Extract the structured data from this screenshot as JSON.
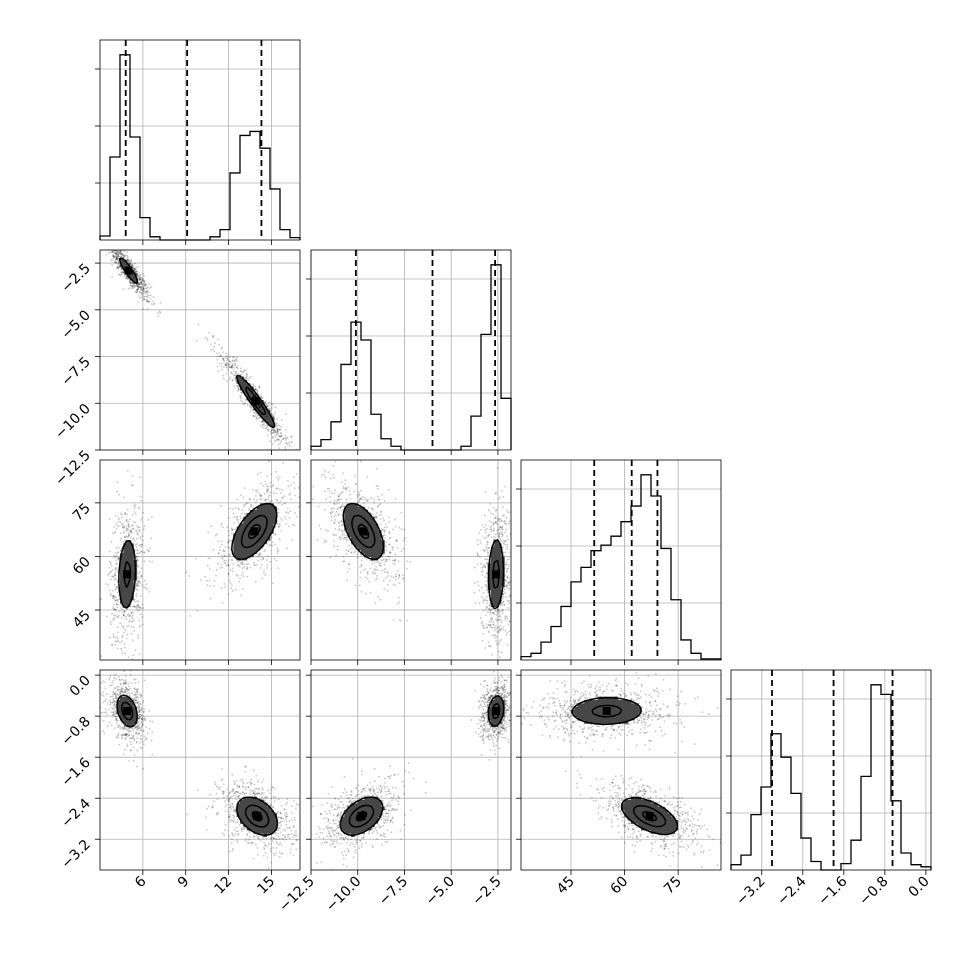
{
  "chart_data": {
    "type": "corner",
    "parameters": [
      {
        "range": [
          3,
          17
        ],
        "ticks": [
          6,
          9,
          12,
          15
        ],
        "tick_labels": [
          "6",
          "9",
          "12",
          "15"
        ],
        "quantiles": [
          4.8,
          9.1,
          14.3
        ],
        "histogram": {
          "bin_edges": [
            3,
            3.7,
            4.4,
            5.1,
            5.8,
            6.5,
            7.2,
            7.9,
            8.6,
            9.3,
            10.0,
            10.7,
            11.4,
            12.1,
            12.8,
            13.5,
            14.2,
            14.9,
            15.6,
            16.3,
            17
          ],
          "counts": [
            5,
            104,
            232,
            129,
            28,
            4,
            0,
            0,
            0,
            0,
            0,
            4,
            13,
            84,
            131,
            136,
            115,
            64,
            13,
            3
          ]
        }
      },
      {
        "range": [
          -12.5,
          -1.8
        ],
        "ticks": [
          -12.5,
          -10.0,
          -7.5,
          -5.0,
          -2.5
        ],
        "tick_labels": [
          "−12.5",
          "−10.0",
          "−7.5",
          "−5.0",
          "−2.5"
        ],
        "quantiles": [
          -10.1,
          -6.0,
          -2.65
        ],
        "histogram": {
          "bin_edges": [
            -12.5,
            -11.965,
            -11.43,
            -10.895,
            -10.36,
            -9.825,
            -9.29,
            -8.755,
            -8.22,
            -7.685,
            -7.15,
            -6.615,
            -6.08,
            -5.545,
            -5.01,
            -4.475,
            -3.94,
            -3.405,
            -2.87,
            -2.335,
            -1.8
          ],
          "counts": [
            4,
            11,
            30,
            91,
            136,
            117,
            38,
            12,
            4,
            0,
            0,
            0,
            0,
            0,
            0,
            4,
            36,
            123,
            197,
            55
          ]
        }
      },
      {
        "range": [
          31,
          87
        ],
        "ticks": [
          45,
          60,
          75
        ],
        "tick_labels": [
          "45",
          "60",
          "75"
        ],
        "quantiles": [
          51.5,
          62,
          69.2
        ],
        "histogram": {
          "bin_edges": [
            31,
            33.8,
            36.6,
            39.4,
            42.2,
            45,
            47.8,
            50.6,
            53.4,
            56.2,
            59,
            61.8,
            64.6,
            67.4,
            70.2,
            73,
            75.8,
            78.6,
            81.4,
            84.2,
            87
          ],
          "counts": [
            3,
            6,
            16,
            30,
            48,
            70,
            83,
            98,
            103,
            111,
            124,
            138,
            166,
            147,
            100,
            54,
            18,
            6,
            1,
            1
          ]
        }
      },
      {
        "range": [
          -3.8,
          0.1
        ],
        "ticks": [
          -3.2,
          -2.4,
          -1.6,
          -0.8,
          0.0
        ],
        "tick_labels": [
          "−3.2",
          "−2.4",
          "−1.6",
          "−0.8",
          "0.0"
        ],
        "quantiles": [
          -3.0,
          -1.8,
          -0.65
        ],
        "histogram": {
          "bin_edges": [
            -3.8,
            -3.605,
            -3.41,
            -3.215,
            -3.02,
            -2.825,
            -2.63,
            -2.435,
            -2.24,
            -2.045,
            -1.85,
            -1.655,
            -1.46,
            -1.265,
            -1.07,
            -0.875,
            -0.68,
            -0.485,
            -0.29,
            -0.095,
            0.1
          ],
          "counts": [
            5,
            14,
            52,
            78,
            128,
            106,
            72,
            30,
            8,
            0,
            0,
            6,
            28,
            88,
            174,
            165,
            65,
            16,
            5,
            3
          ]
        }
      }
    ],
    "pairs": [
      {
        "x": 0,
        "y": 1,
        "clusters": [
          {
            "mean": [
              5.0,
              -2.9
            ],
            "sd": [
              0.55,
              0.6
            ],
            "rho": -0.9,
            "weight": 0.5
          },
          {
            "mean": [
              13.9,
              -9.9
            ],
            "sd": [
              0.95,
              1.0
            ],
            "rho": -0.95,
            "weight": 0.5
          }
        ]
      },
      {
        "x": 0,
        "y": 2,
        "clusters": [
          {
            "mean": [
              4.9,
              55
            ],
            "sd": [
              0.45,
              7.5
            ],
            "rho": 0.15,
            "weight": 0.5
          },
          {
            "mean": [
              13.8,
              67
            ],
            "sd": [
              1.1,
              5.5
            ],
            "rho": 0.6,
            "weight": 0.5
          }
        ]
      },
      {
        "x": 0,
        "y": 3,
        "clusters": [
          {
            "mean": [
              4.9,
              -0.7
            ],
            "sd": [
              0.5,
              0.22
            ],
            "rho": -0.35,
            "weight": 0.5
          },
          {
            "mean": [
              14.0,
              -2.75
            ],
            "sd": [
              1.0,
              0.26
            ],
            "rho": -0.4,
            "weight": 0.5
          }
        ]
      },
      {
        "x": 1,
        "y": 2,
        "clusters": [
          {
            "mean": [
              -9.7,
              67
            ],
            "sd": [
              0.75,
              5.5
            ],
            "rho": -0.55,
            "weight": 0.5
          },
          {
            "mean": [
              -2.6,
              55
            ],
            "sd": [
              0.3,
              7.5
            ],
            "rho": 0.1,
            "weight": 0.5
          }
        ]
      },
      {
        "x": 1,
        "y": 3,
        "clusters": [
          {
            "mean": [
              -9.8,
              -2.75
            ],
            "sd": [
              0.8,
              0.26
            ],
            "rho": 0.45,
            "weight": 0.5
          },
          {
            "mean": [
              -2.6,
              -0.7
            ],
            "sd": [
              0.3,
              0.22
            ],
            "rho": 0.2,
            "weight": 0.5
          }
        ]
      },
      {
        "x": 2,
        "y": 3,
        "clusters": [
          {
            "mean": [
              55,
              -0.7
            ],
            "sd": [
              7.5,
              0.2
            ],
            "rho": 0.05,
            "weight": 0.5
          },
          {
            "mean": [
              67,
              -2.75
            ],
            "sd": [
              5.5,
              0.25
            ],
            "rho": -0.55,
            "weight": 0.5
          }
        ]
      }
    ],
    "contour_levels": [
      0.39,
      0.86,
      1.5
    ],
    "grid": true
  },
  "colors": {
    "histogram_line": "#000000",
    "points": "#000000",
    "contour_line": "#000000",
    "grid": "#b0b0b0",
    "frame": "#000000",
    "density_light": "#ffffff",
    "density_dark": "#000000"
  }
}
